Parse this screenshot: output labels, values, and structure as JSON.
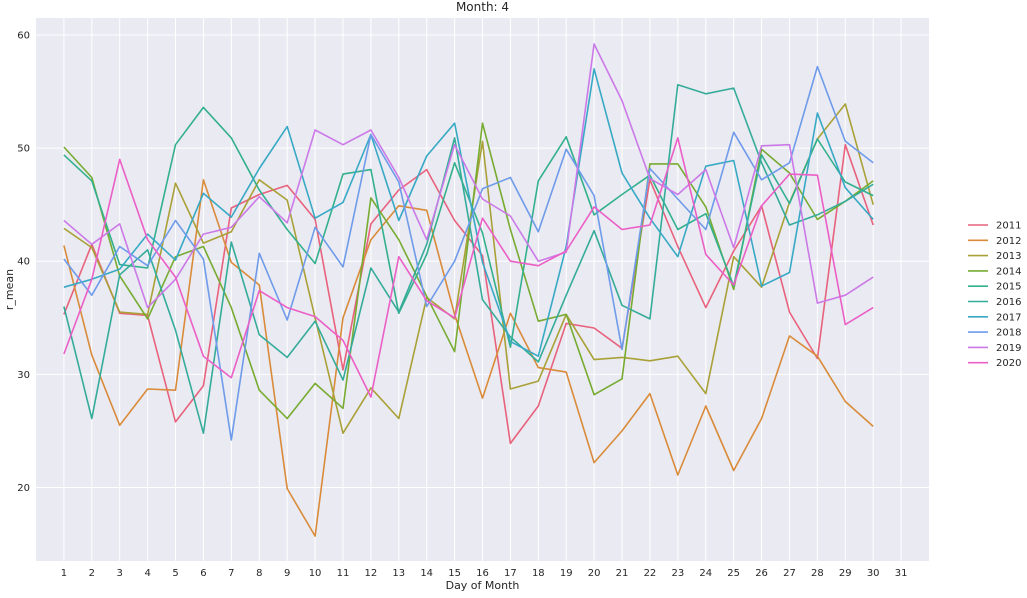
{
  "chart_data": {
    "type": "line",
    "title": "Month: 4",
    "xlabel": "Day of Month",
    "ylabel": "r_mean",
    "x": [
      1,
      2,
      3,
      4,
      5,
      6,
      7,
      8,
      9,
      10,
      11,
      12,
      13,
      14,
      15,
      16,
      17,
      18,
      19,
      20,
      21,
      22,
      23,
      24,
      25,
      26,
      27,
      28,
      29,
      30
    ],
    "x_ticks": [
      1,
      2,
      3,
      4,
      5,
      6,
      7,
      8,
      9,
      10,
      11,
      12,
      13,
      14,
      15,
      16,
      17,
      18,
      19,
      20,
      21,
      22,
      23,
      24,
      25,
      26,
      27,
      28,
      29,
      30,
      31
    ],
    "xlim": [
      0.0,
      32.0
    ],
    "y_ticks": [
      20,
      30,
      40,
      50,
      60
    ],
    "ylim": [
      13.5,
      61.5
    ],
    "grid": true,
    "legend_position": "right",
    "background": "#eaeaf2",
    "series": [
      {
        "name": "2011",
        "color": "#e8627d",
        "values": [
          35.3,
          41.5,
          35.4,
          35.2,
          25.8,
          29.0,
          44.7,
          45.9,
          46.7,
          43.7,
          30.4,
          43.3,
          46.3,
          48.1,
          43.6,
          40.5,
          23.9,
          27.2,
          34.5,
          34.1,
          32.3,
          47.2,
          41.3,
          35.9,
          40.9,
          44.9,
          35.5,
          31.4,
          50.3,
          43.2
        ]
      },
      {
        "name": "2012",
        "color": "#d98b3a",
        "values": [
          41.4,
          31.7,
          25.5,
          28.7,
          28.6,
          47.2,
          39.9,
          37.9,
          19.9,
          15.7,
          35.0,
          41.9,
          44.9,
          44.5,
          35.3,
          27.9,
          35.4,
          30.6,
          30.2,
          22.2,
          25.0,
          28.3,
          21.1,
          27.2,
          21.5,
          26.1,
          33.4,
          31.6,
          27.6,
          25.4
        ]
      },
      {
        "name": "2013",
        "color": "#a9a137",
        "values": [
          42.9,
          41.2,
          35.5,
          35.3,
          46.9,
          41.6,
          42.6,
          47.2,
          45.4,
          35.0,
          24.8,
          28.8,
          26.1,
          36.8,
          34.9,
          50.6,
          28.7,
          29.4,
          35.3,
          31.3,
          31.5,
          31.2,
          31.6,
          28.3,
          40.4,
          37.7,
          45.2,
          50.8,
          53.9,
          45.0
        ]
      },
      {
        "name": "2014",
        "color": "#77ab31",
        "values": [
          50.1,
          47.4,
          38.7,
          34.9,
          40.4,
          41.3,
          35.9,
          28.6,
          26.1,
          29.2,
          27.0,
          45.6,
          41.9,
          36.9,
          32.0,
          52.2,
          42.8,
          34.7,
          35.3,
          28.2,
          29.6,
          48.6,
          48.6,
          44.8,
          37.5,
          49.9,
          47.8,
          43.7,
          45.3,
          47.1
        ]
      },
      {
        "name": "2015",
        "color": "#33b08e",
        "values": [
          49.4,
          47.1,
          39.7,
          39.4,
          50.3,
          53.6,
          50.9,
          46.3,
          42.8,
          39.8,
          47.7,
          48.1,
          35.4,
          40.6,
          48.7,
          42.5,
          32.4,
          47.1,
          51.0,
          44.1,
          45.9,
          47.6,
          42.8,
          44.2,
          37.8,
          49.4,
          45.1,
          50.8,
          47.0,
          45.8
        ]
      },
      {
        "name": "2016",
        "color": "#35ac9a",
        "values": [
          36.0,
          26.1,
          38.8,
          41.0,
          33.9,
          24.8,
          41.7,
          33.5,
          31.5,
          34.7,
          29.5,
          39.4,
          35.5,
          41.5,
          50.9,
          36.6,
          33.3,
          31.1,
          37.0,
          42.7,
          36.1,
          34.9,
          55.6,
          54.8,
          55.3,
          48.7,
          43.2,
          44.1,
          45.3,
          46.8
        ]
      },
      {
        "name": "2017",
        "color": "#38a9c5",
        "values": [
          37.7,
          38.4,
          39.3,
          42.4,
          40.1,
          46.0,
          43.9,
          48.2,
          51.9,
          43.8,
          45.2,
          51.2,
          43.6,
          49.3,
          52.2,
          39.9,
          32.9,
          31.6,
          41.3,
          57.0,
          47.8,
          43.8,
          40.4,
          48.4,
          48.9,
          37.8,
          39.0,
          53.1,
          46.5,
          43.7
        ]
      },
      {
        "name": "2018",
        "color": "#6e9bea",
        "values": [
          40.2,
          37.0,
          41.3,
          39.6,
          43.6,
          40.2,
          24.2,
          40.7,
          34.8,
          43.0,
          39.5,
          51.2,
          47.0,
          36.0,
          40.0,
          46.4,
          47.4,
          42.6,
          49.9,
          45.8,
          32.2,
          48.2,
          45.5,
          42.8,
          51.4,
          47.2,
          48.7,
          57.2,
          50.6,
          48.7
        ]
      },
      {
        "name": "2019",
        "color": "#cc79e8",
        "values": [
          43.6,
          41.5,
          43.3,
          35.9,
          38.4,
          42.4,
          43.0,
          45.7,
          43.4,
          51.6,
          50.3,
          51.6,
          47.4,
          41.9,
          50.3,
          45.5,
          44.0,
          40.0,
          40.8,
          59.2,
          54.2,
          47.3,
          45.9,
          48.1,
          41.2,
          50.2,
          50.3,
          36.3,
          37.0,
          38.6
        ]
      },
      {
        "name": "2020",
        "color": "#eb5fc6",
        "values": [
          31.8,
          38.4,
          49.0,
          41.9,
          38.6,
          31.6,
          29.7,
          37.4,
          35.9,
          35.1,
          33.0,
          28.0,
          40.4,
          36.5,
          35.0,
          43.8,
          40.0,
          39.6,
          40.9,
          44.8,
          42.8,
          43.2,
          50.9,
          40.6,
          37.9,
          44.9,
          47.7,
          47.6,
          34.4,
          35.9
        ]
      }
    ]
  }
}
